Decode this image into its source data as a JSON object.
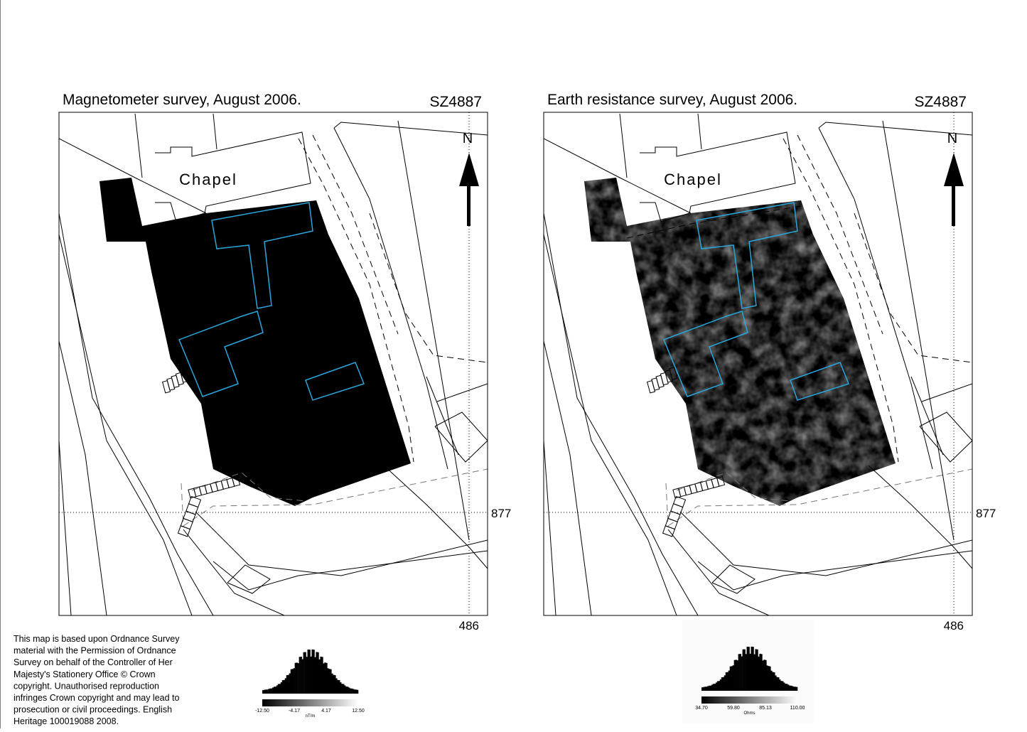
{
  "panels": [
    {
      "title": "Magnetometer survey, August 2006.",
      "grid_ref": "SZ4887",
      "building": "Chapel",
      "north": "N",
      "northing": "877",
      "easting": "486",
      "legend": {
        "ticks": [
          "-12.50",
          "-4.17",
          "4.17",
          "12.50"
        ],
        "unit": "nT/m"
      }
    },
    {
      "title": "Earth resistance survey, August 2006.",
      "grid_ref": "SZ4887",
      "building": "Chapel",
      "north": "N",
      "northing": "877",
      "easting": "486",
      "legend": {
        "ticks": [
          "34.70",
          "59.80",
          "85.13",
          "110.00"
        ],
        "unit": "Ohms"
      }
    }
  ],
  "copyright": [
    "This map is based upon Ordnance Survey",
    "material with the Permission of Ordnance",
    "Survey on behalf of the Controller of  Her",
    "Majesty's Stationery Office © Crown",
    "copyright. Unauthorised reproduction",
    "infringes Crown copyright and may lead to",
    "prosecution or civil proceedings. English",
    "Heritage 100019088 2008."
  ]
}
